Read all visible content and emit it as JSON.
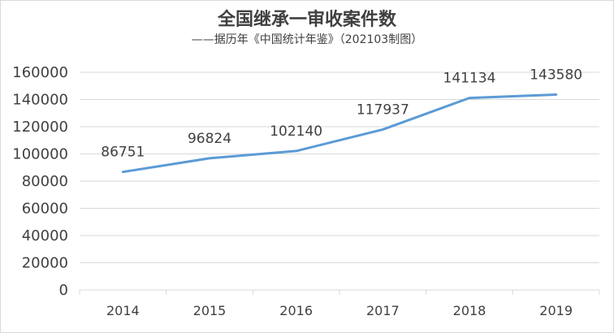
{
  "chart_data": {
    "type": "line",
    "title": "全国继承一审收案件数",
    "subtitle": "——据历年《中国统计年鉴》（202103制图）",
    "categories": [
      "2014",
      "2015",
      "2016",
      "2017",
      "2018",
      "2019"
    ],
    "series": [
      {
        "values": [
          86751,
          96824,
          102140,
          117937,
          141134,
          143580
        ]
      }
    ],
    "ylim": [
      0,
      160000
    ],
    "yticks": [
      "0",
      "20000",
      "40000",
      "60000",
      "80000",
      "100000",
      "120000",
      "140000",
      "160000"
    ],
    "grid": true,
    "legend": "none",
    "line_color": "#5b9bd5"
  }
}
